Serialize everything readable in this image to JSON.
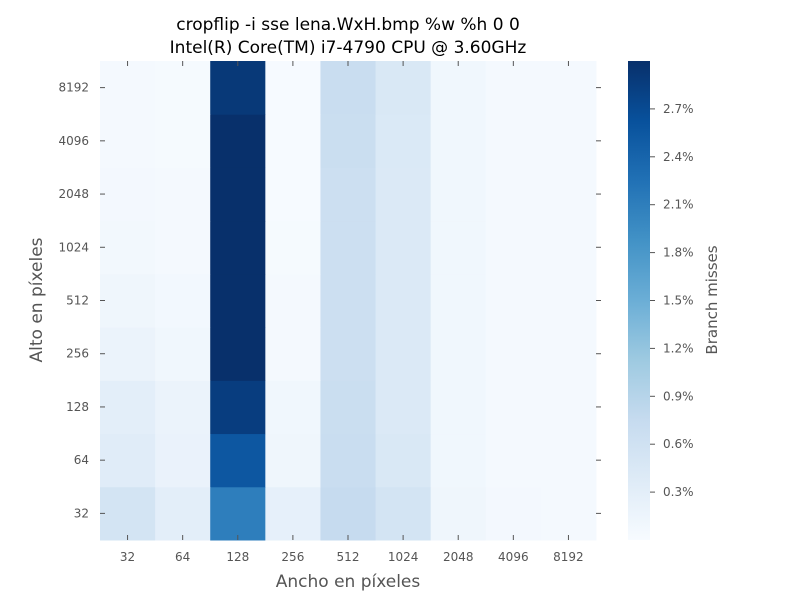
{
  "chart_data": {
    "type": "heatmap",
    "title": "cropflip -i sse lena.WxH.bmp %w %h 0 0",
    "subtitle": "Intel(R) Core(TM) i7-4790 CPU @ 3.60GHz",
    "xlabel": "Ancho en píxeles",
    "ylabel": "Alto en píxeles",
    "x": [
      "32",
      "64",
      "128",
      "256",
      "512",
      "1024",
      "2048",
      "4096",
      "8192"
    ],
    "y": [
      "32",
      "64",
      "128",
      "256",
      "512",
      "1024",
      "2048",
      "4096",
      "8192"
    ],
    "values_unit": "percent",
    "values": [
      [
        0.55,
        0.3,
        2.1,
        0.25,
        0.75,
        0.55,
        0.12,
        0.06,
        0.05
      ],
      [
        0.35,
        0.2,
        2.55,
        0.12,
        0.7,
        0.45,
        0.1,
        0.05,
        0.04
      ],
      [
        0.3,
        0.18,
        2.85,
        0.1,
        0.68,
        0.42,
        0.1,
        0.05,
        0.04
      ],
      [
        0.18,
        0.1,
        3.0,
        0.05,
        0.65,
        0.42,
        0.1,
        0.05,
        0.04
      ],
      [
        0.12,
        0.07,
        3.0,
        0.04,
        0.65,
        0.42,
        0.1,
        0.05,
        0.04
      ],
      [
        0.08,
        0.05,
        3.0,
        0.03,
        0.65,
        0.42,
        0.1,
        0.05,
        0.04
      ],
      [
        0.06,
        0.04,
        3.0,
        0.02,
        0.66,
        0.42,
        0.1,
        0.05,
        0.04
      ],
      [
        0.05,
        0.03,
        3.0,
        0.02,
        0.68,
        0.43,
        0.1,
        0.05,
        0.04
      ],
      [
        0.05,
        0.03,
        2.9,
        0.02,
        0.7,
        0.45,
        0.1,
        0.05,
        0.04
      ]
    ],
    "colorbar": {
      "label": "Branch misses",
      "range": [
        0,
        3.0
      ],
      "ticks": [
        0.3,
        0.6,
        0.9,
        1.2,
        1.5,
        1.8,
        2.1,
        2.4,
        2.7
      ],
      "tick_labels": [
        "0.3%",
        "0.6%",
        "0.9%",
        "1.2%",
        "1.5%",
        "1.8%",
        "2.1%",
        "2.4%",
        "2.7%"
      ],
      "colormap": "Blues"
    },
    "grid": false
  }
}
